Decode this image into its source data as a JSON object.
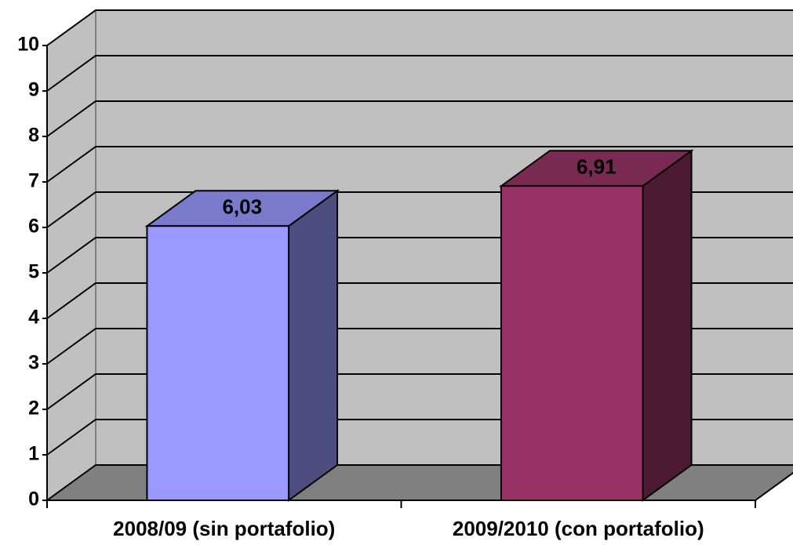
{
  "chart_data": {
    "type": "bar3d",
    "categories": [
      "2008/09 (sin portafolio)",
      "2009/2010 (con portafolio)"
    ],
    "values": [
      6.03,
      6.91
    ],
    "value_labels": [
      "6,03",
      "6,91"
    ],
    "colors": [
      "#9999ff",
      "#993366"
    ],
    "ylim": [
      0,
      10
    ],
    "yticks": [
      0,
      1,
      2,
      3,
      4,
      5,
      6,
      7,
      8,
      9,
      10
    ],
    "grid": true
  }
}
